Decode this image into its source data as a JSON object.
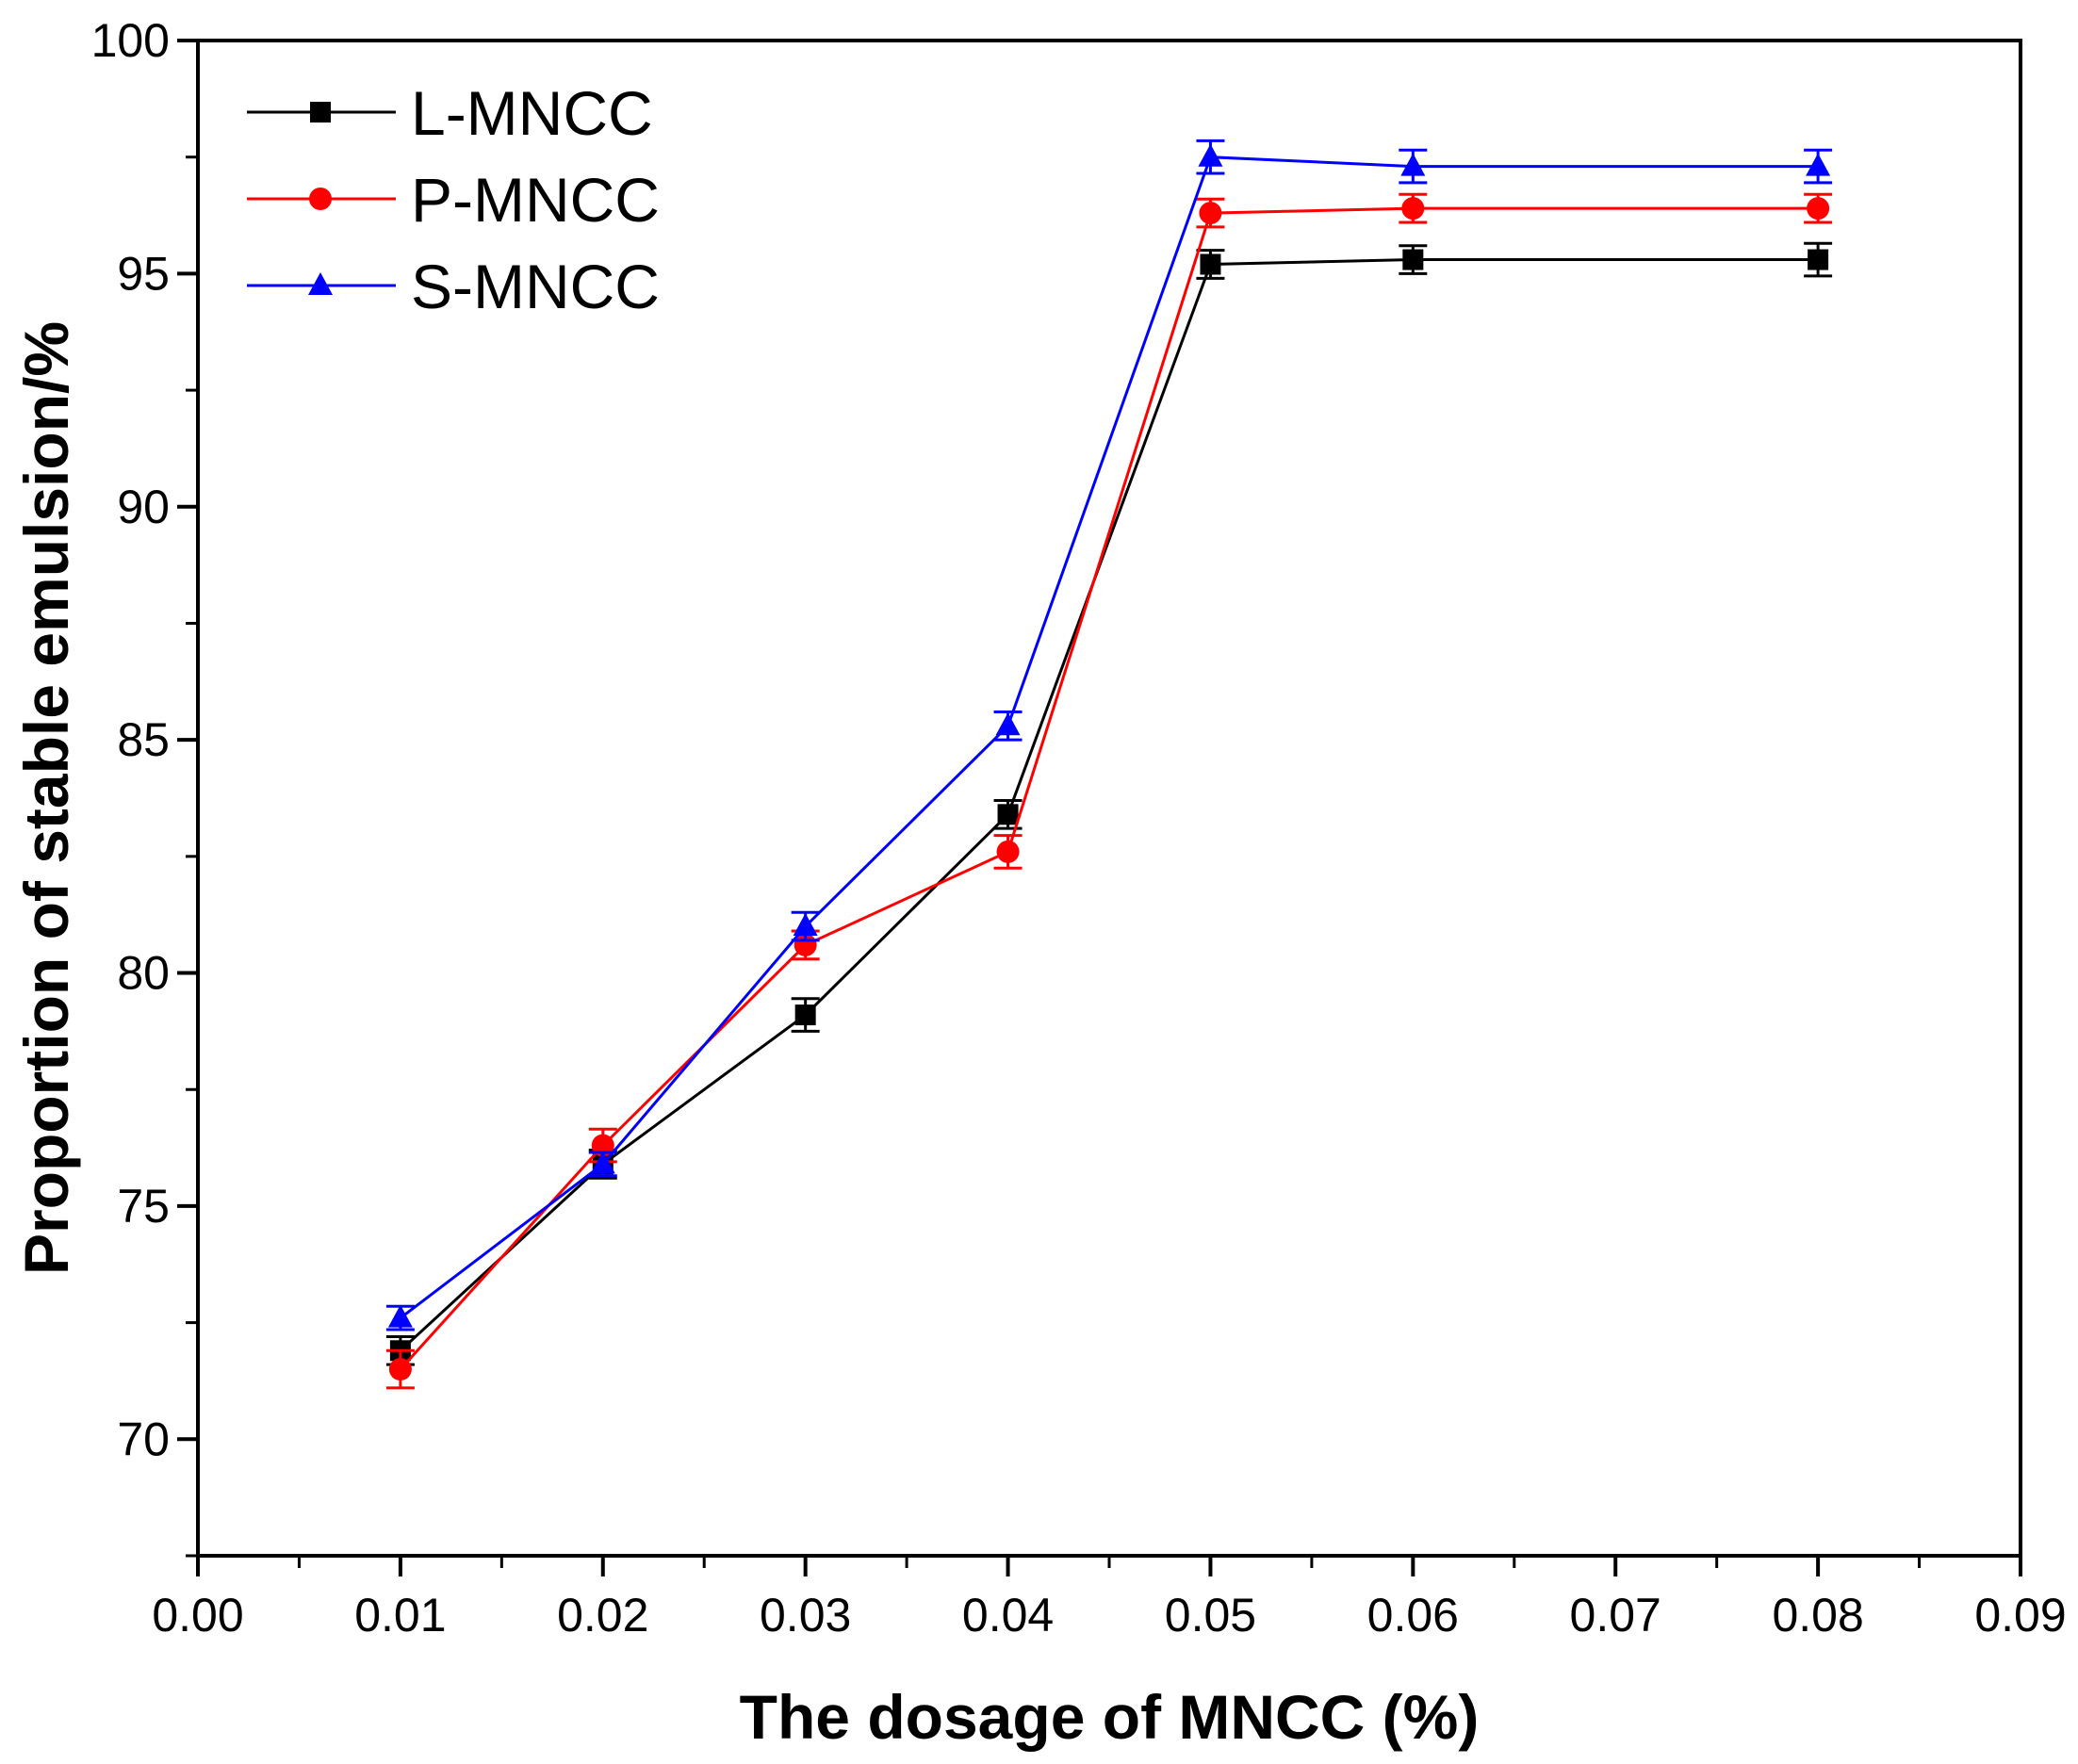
{
  "chart_data": {
    "type": "line",
    "xlabel": "The dosage of MNCC (%)",
    "ylabel": "Proportion of stable emulsion/%",
    "xlim": [
      0.0,
      0.09
    ],
    "ylim": [
      67.5,
      100
    ],
    "x_ticks": [
      "0.00",
      "0.01",
      "0.02",
      "0.03",
      "0.04",
      "0.05",
      "0.06",
      "0.07",
      "0.08",
      "0.09"
    ],
    "x_tick_values": [
      0.0,
      0.01,
      0.02,
      0.03,
      0.04,
      0.05,
      0.06,
      0.07,
      0.08,
      0.09
    ],
    "y_ticks": [
      "70",
      "75",
      "80",
      "85",
      "90",
      "95",
      "100"
    ],
    "y_tick_values": [
      70,
      75,
      80,
      85,
      90,
      95,
      100
    ],
    "grid": false,
    "legend_position": "top-left",
    "x": [
      0.01,
      0.02,
      0.03,
      0.04,
      0.05,
      0.06,
      0.08
    ],
    "series": [
      {
        "name": "L-MNCC",
        "color": "#000000",
        "marker": "square",
        "values": [
          71.9,
          75.9,
          79.1,
          83.4,
          95.2,
          95.3,
          95.3
        ],
        "errors": [
          0.3,
          0.3,
          0.35,
          0.3,
          0.3,
          0.3,
          0.35
        ]
      },
      {
        "name": "P-MNCC",
        "color": "#ff0000",
        "marker": "circle",
        "values": [
          71.5,
          76.3,
          80.6,
          82.6,
          96.3,
          96.4,
          96.4
        ],
        "errors": [
          0.4,
          0.35,
          0.3,
          0.35,
          0.3,
          0.3,
          0.3
        ]
      },
      {
        "name": "S-MNCC",
        "color": "#0000ff",
        "marker": "triangle",
        "values": [
          72.6,
          75.9,
          81.0,
          85.3,
          97.5,
          97.3,
          97.3
        ],
        "errors": [
          0.25,
          0.25,
          0.3,
          0.3,
          0.35,
          0.35,
          0.35
        ]
      }
    ]
  }
}
